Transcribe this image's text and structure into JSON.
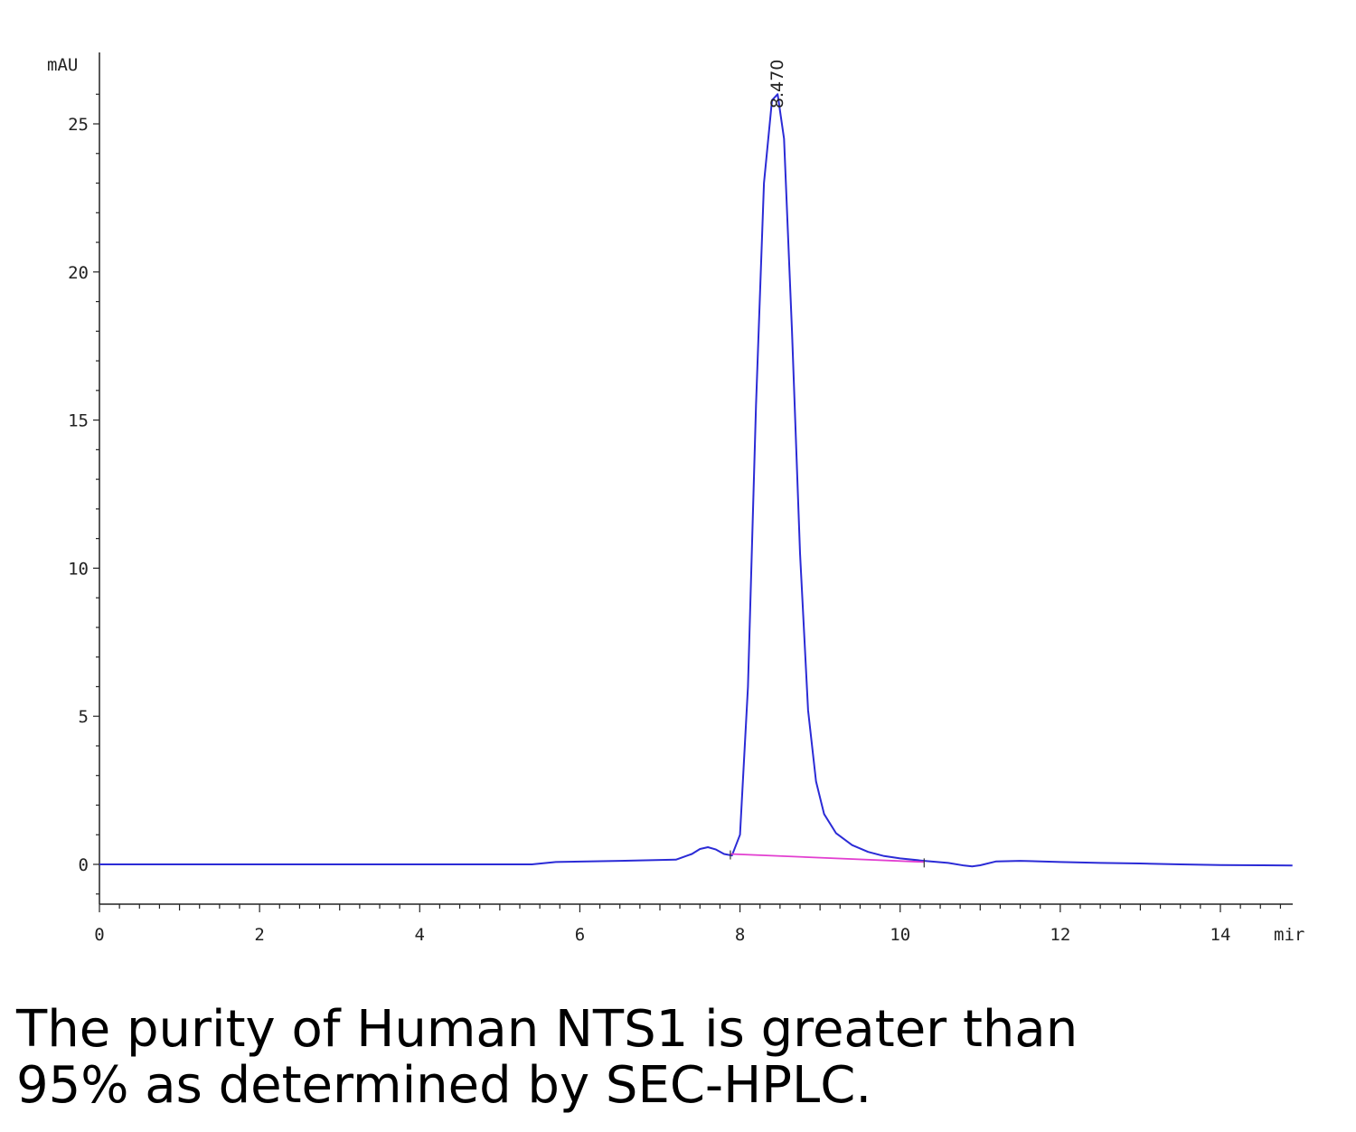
{
  "chart_data": {
    "type": "line",
    "y_unit_label": "mAU",
    "x_unit_label": "mir",
    "xlim": [
      0,
      14.9
    ],
    "ylim": [
      -1.3,
      27.0
    ],
    "x_ticks": [
      0,
      2,
      4,
      6,
      8,
      10,
      12,
      14
    ],
    "y_ticks": [
      0,
      5,
      10,
      15,
      20,
      25
    ],
    "grid": false,
    "series": [
      {
        "color": "#2b2bd6",
        "x": [
          0,
          5.4,
          5.7,
          6.5,
          7.2,
          7.4,
          7.5,
          7.6,
          7.7,
          7.8,
          7.9,
          8.0,
          8.1,
          8.2,
          8.3,
          8.4,
          8.47,
          8.55,
          8.65,
          8.75,
          8.85,
          8.95,
          9.05,
          9.2,
          9.4,
          9.6,
          9.8,
          10.0,
          10.3,
          10.6,
          10.8,
          10.9,
          11.0,
          11.2,
          11.5,
          12.0,
          12.5,
          13.0,
          13.5,
          14.0,
          14.5,
          14.9
        ],
        "y": [
          0.0,
          0.0,
          0.08,
          0.12,
          0.16,
          0.35,
          0.52,
          0.58,
          0.5,
          0.35,
          0.3,
          1.0,
          6.0,
          15.5,
          23.0,
          25.8,
          26.0,
          24.5,
          18.0,
          10.5,
          5.2,
          2.8,
          1.7,
          1.05,
          0.65,
          0.42,
          0.28,
          0.2,
          0.12,
          0.05,
          -0.04,
          -0.07,
          -0.03,
          0.1,
          0.12,
          0.08,
          0.05,
          0.03,
          0.0,
          -0.02,
          -0.03,
          -0.04
        ]
      },
      {
        "color": "#e23fd0",
        "x": [
          7.88,
          10.3
        ],
        "y": [
          0.35,
          0.08
        ]
      }
    ],
    "annotations": [
      {
        "text": "8.470",
        "x": 8.47
      }
    ]
  },
  "caption": {
    "line1": "The purity of Human NTS1 is greater than",
    "line2": "95% as determined by SEC-HPLC."
  }
}
